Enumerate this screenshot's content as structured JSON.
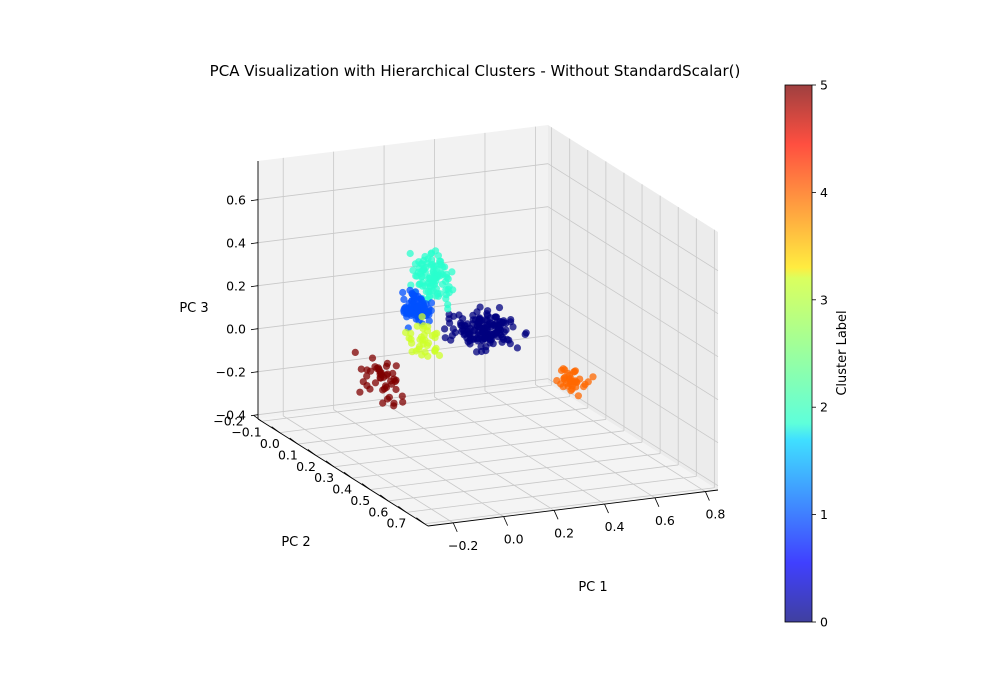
{
  "chart_data": {
    "type": "scatter",
    "projection": "3d",
    "title": "PCA Visualization with Hierarchical Clusters - Without StandardScalar()",
    "xlabel": "PC 1",
    "ylabel": "PC 2",
    "zlabel": "PC 3",
    "x_ticks": [
      -0.2,
      0.0,
      0.2,
      0.4,
      0.6,
      0.8
    ],
    "y_ticks": [
      -0.2,
      -0.1,
      0.0,
      0.1,
      0.2,
      0.3,
      0.4,
      0.5,
      0.6,
      0.7
    ],
    "z_ticks": [
      -0.4,
      -0.2,
      0.0,
      0.2,
      0.4,
      0.6
    ],
    "xlim": [
      -0.3,
      0.85
    ],
    "ylim": [
      -0.22,
      0.72
    ],
    "zlim": [
      -0.42,
      0.78
    ],
    "grid": true,
    "colormap": "jet",
    "point_alpha": 0.75,
    "colorbar": {
      "label": "Cluster Label",
      "min": 0,
      "max": 5,
      "ticks": [
        0,
        1,
        2,
        3,
        4,
        5
      ]
    },
    "cluster_colors": {
      "0": "#00007f",
      "1": "#0050ff",
      "2": "#29ffce",
      "3": "#ceff29",
      "4": "#ff6800",
      "5": "#7f0000"
    },
    "clusters": [
      {
        "label": 0,
        "center": [
          0.4,
          0.05,
          0.04
        ],
        "spread": [
          0.09,
          0.05,
          0.045
        ],
        "count": 150
      },
      {
        "label": 1,
        "center": [
          0.18,
          -0.02,
          0.13
        ],
        "spread": [
          0.035,
          0.035,
          0.05
        ],
        "count": 90
      },
      {
        "label": 2,
        "center": [
          0.28,
          -0.07,
          0.24
        ],
        "spread": [
          0.05,
          0.04,
          0.08
        ],
        "count": 100
      },
      {
        "label": 3,
        "center": [
          0.15,
          0.08,
          0.05
        ],
        "spread": [
          0.05,
          0.05,
          0.06
        ],
        "count": 35
      },
      {
        "label": 4,
        "center": [
          0.62,
          0.22,
          -0.14
        ],
        "spread": [
          0.04,
          0.06,
          0.04
        ],
        "count": 35
      },
      {
        "label": 5,
        "center": [
          -0.05,
          0.12,
          -0.08
        ],
        "spread": [
          0.07,
          0.08,
          0.08
        ],
        "count": 45
      }
    ]
  }
}
